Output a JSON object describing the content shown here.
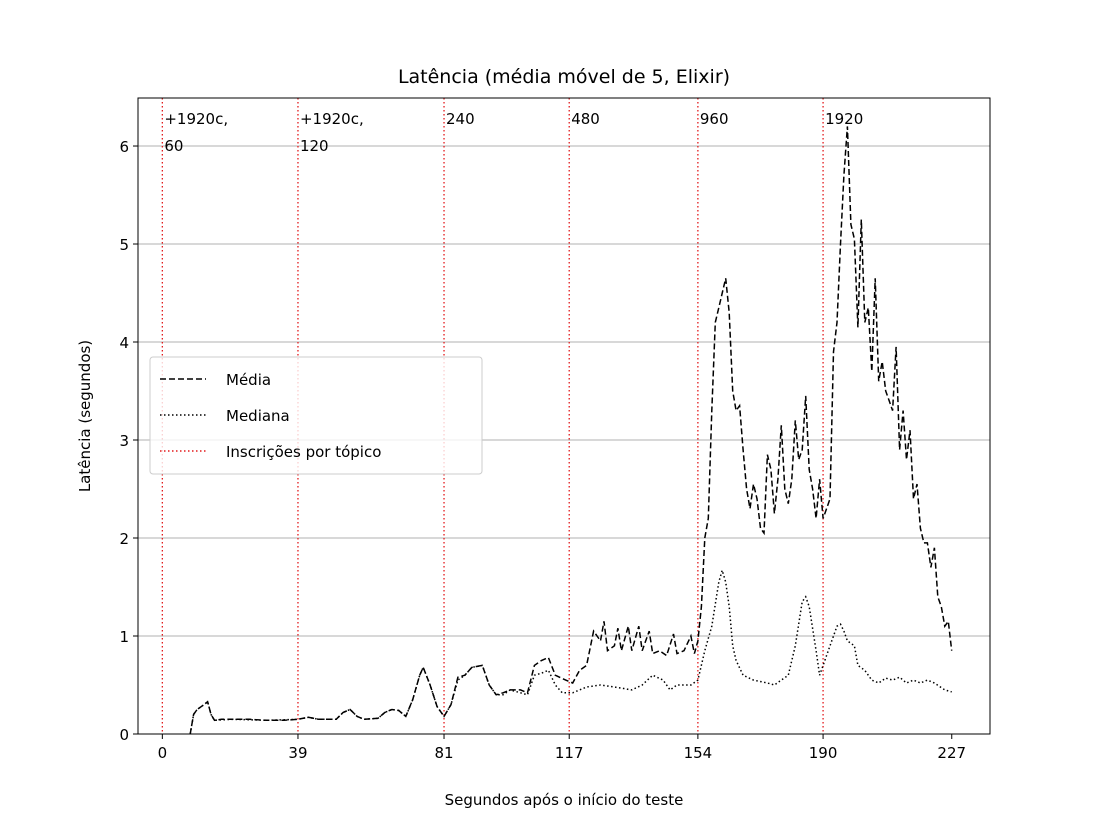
{
  "chart_data": {
    "type": "line",
    "title": "Latência (média móvel de 5, Elixir)",
    "xlabel": "Segundos após o início do teste",
    "ylabel": "Latência (segundos)",
    "xlim": [
      -7,
      238
    ],
    "ylim": [
      0,
      6.49
    ],
    "xticks": [
      0,
      39,
      81,
      117,
      154,
      190,
      227
    ],
    "yticks": [
      0,
      1,
      2,
      3,
      4,
      5,
      6
    ],
    "grid": "y",
    "legend": "left",
    "series": [
      {
        "name": "Média",
        "color": "#000000",
        "style": "dashed",
        "x": [
          8,
          9,
          10,
          12,
          13,
          14,
          15,
          17,
          20,
          25,
          30,
          35,
          39,
          42,
          45,
          50,
          52,
          54,
          56,
          58,
          62,
          64,
          66,
          68,
          70,
          72,
          74,
          75,
          77,
          79,
          81,
          83,
          85,
          87,
          89,
          92,
          94,
          96,
          98,
          100,
          103,
          105,
          107,
          109,
          111,
          113,
          116,
          118,
          120,
          122,
          124,
          126,
          127,
          128,
          130,
          131,
          132,
          134,
          135,
          137,
          138,
          140,
          141,
          143,
          145,
          147,
          148,
          150,
          152,
          153,
          154,
          155,
          156,
          157,
          158,
          159,
          160,
          162,
          163,
          164,
          165,
          166,
          167,
          168,
          169,
          170,
          171,
          172,
          173,
          174,
          175,
          176,
          177,
          178,
          179,
          180,
          181,
          182,
          183,
          184,
          185,
          186,
          187,
          188,
          189,
          190,
          191,
          192,
          193,
          194,
          195,
          196,
          197,
          198,
          199,
          200,
          201,
          202,
          203,
          204,
          205,
          206,
          207,
          208,
          209,
          210,
          211,
          212,
          213,
          214,
          215,
          216,
          217,
          218,
          219,
          220,
          221,
          222,
          223,
          224,
          225,
          226,
          227
        ],
        "values": [
          0,
          0.2,
          0.25,
          0.3,
          0.33,
          0.2,
          0.14,
          0.15,
          0.15,
          0.15,
          0.14,
          0.14,
          0.15,
          0.17,
          0.15,
          0.15,
          0.22,
          0.25,
          0.18,
          0.15,
          0.16,
          0.22,
          0.25,
          0.24,
          0.18,
          0.35,
          0.6,
          0.68,
          0.5,
          0.28,
          0.18,
          0.3,
          0.58,
          0.6,
          0.68,
          0.7,
          0.5,
          0.4,
          0.42,
          0.45,
          0.45,
          0.42,
          0.7,
          0.75,
          0.78,
          0.6,
          0.55,
          0.52,
          0.65,
          0.7,
          1.05,
          0.95,
          1.15,
          0.85,
          0.9,
          1.08,
          0.85,
          1.1,
          0.85,
          1.1,
          0.85,
          1.05,
          0.82,
          0.85,
          0.8,
          1.02,
          0.82,
          0.85,
          1.0,
          0.82,
          0.95,
          1.3,
          2.0,
          2.2,
          3.3,
          4.2,
          4.35,
          4.65,
          4.3,
          3.5,
          3.3,
          3.35,
          2.9,
          2.5,
          2.3,
          2.55,
          2.4,
          2.1,
          2.05,
          2.85,
          2.7,
          2.25,
          2.6,
          3.15,
          2.5,
          2.35,
          2.6,
          3.2,
          2.8,
          2.9,
          3.45,
          2.7,
          2.5,
          2.2,
          2.6,
          2.2,
          2.3,
          2.4,
          3.9,
          4.2,
          5.0,
          5.7,
          6.2,
          5.2,
          5.05,
          4.15,
          5.25,
          4.2,
          4.35,
          3.7,
          4.65,
          3.6,
          3.8,
          3.5,
          3.4,
          3.3,
          3.95,
          2.9,
          3.3,
          2.8,
          3.1,
          2.4,
          2.55,
          2.1,
          1.95,
          1.95,
          1.7,
          1.9,
          1.4,
          1.3,
          1.1,
          1.15,
          0.85
        ]
      },
      {
        "name": "Mediana",
        "color": "#000000",
        "style": "dotted",
        "x": [
          8,
          9,
          10,
          12,
          13,
          14,
          15,
          20,
          30,
          39,
          42,
          45,
          50,
          52,
          54,
          56,
          58,
          62,
          64,
          66,
          68,
          70,
          72,
          74,
          75,
          77,
          79,
          81,
          83,
          85,
          87,
          89,
          92,
          94,
          96,
          98,
          100,
          103,
          105,
          107,
          109,
          111,
          113,
          115,
          118,
          122,
          126,
          130,
          135,
          138,
          141,
          144,
          146,
          148,
          152,
          154,
          156,
          158,
          160,
          161,
          162,
          163,
          164,
          165,
          167,
          170,
          174,
          176,
          178,
          180,
          182,
          184,
          185,
          186,
          188,
          189,
          190,
          192,
          194,
          195,
          196,
          197,
          199,
          200,
          202,
          204,
          206,
          208,
          210,
          212,
          214,
          216,
          218,
          220,
          222,
          225,
          227
        ],
        "values": [
          0,
          0.2,
          0.25,
          0.3,
          0.33,
          0.2,
          0.14,
          0.15,
          0.14,
          0.15,
          0.17,
          0.15,
          0.15,
          0.22,
          0.25,
          0.18,
          0.15,
          0.16,
          0.22,
          0.25,
          0.24,
          0.18,
          0.35,
          0.6,
          0.68,
          0.5,
          0.28,
          0.18,
          0.3,
          0.55,
          0.6,
          0.68,
          0.7,
          0.5,
          0.4,
          0.4,
          0.45,
          0.42,
          0.4,
          0.6,
          0.62,
          0.65,
          0.5,
          0.42,
          0.42,
          0.48,
          0.5,
          0.48,
          0.45,
          0.5,
          0.6,
          0.55,
          0.45,
          0.5,
          0.5,
          0.55,
          0.85,
          1.1,
          1.55,
          1.67,
          1.55,
          1.3,
          0.9,
          0.75,
          0.6,
          0.55,
          0.52,
          0.5,
          0.55,
          0.6,
          0.9,
          1.35,
          1.4,
          1.3,
          0.85,
          0.6,
          0.7,
          0.9,
          1.1,
          1.12,
          1.05,
          0.95,
          0.9,
          0.7,
          0.65,
          0.55,
          0.52,
          0.57,
          0.55,
          0.58,
          0.52,
          0.55,
          0.52,
          0.55,
          0.52,
          0.45,
          0.43
        ]
      }
    ],
    "vlines": {
      "name": "Inscrições por tópico",
      "color": "#e31a1c",
      "x": [
        0,
        39,
        81,
        117,
        154,
        190
      ],
      "labels": [
        [
          "+1920c,",
          "60"
        ],
        [
          "+1920c,",
          "120"
        ],
        [
          "240"
        ],
        [
          "480"
        ],
        [
          "960"
        ],
        [
          "1920"
        ]
      ],
      "label_color": "#f08080"
    }
  }
}
